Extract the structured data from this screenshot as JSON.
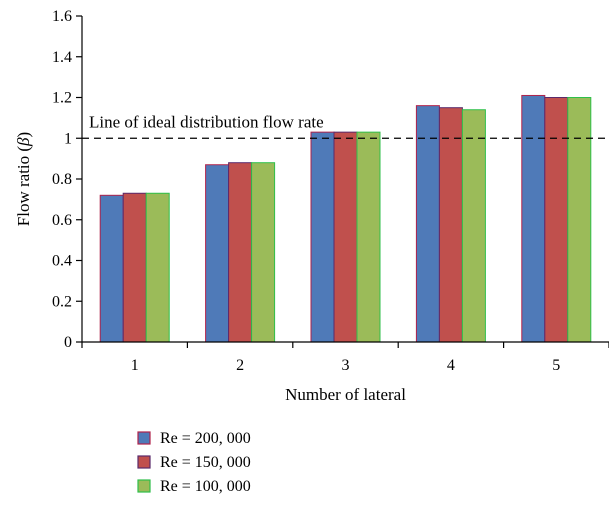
{
  "chart_data": {
    "type": "bar",
    "title": "",
    "xlabel": "Number of lateral",
    "ylabel": "Flow ratio (β)",
    "categories": [
      "1",
      "2",
      "3",
      "4",
      "5"
    ],
    "ylim": [
      0,
      1.6
    ],
    "yticks": [
      "0",
      "0.2",
      "0.4",
      "0.6",
      "0.8",
      "1",
      "1.2",
      "1.4",
      "1.6"
    ],
    "grid": false,
    "legend_position": "bottom-left",
    "series": [
      {
        "name": "Re = 200, 000",
        "color": "#4f7ab8",
        "edge": "#b0224a",
        "values": [
          0.72,
          0.87,
          1.03,
          1.16,
          1.21
        ]
      },
      {
        "name": "Re = 150, 000",
        "color": "#c0504d",
        "edge": "#5a2a6b",
        "values": [
          0.73,
          0.88,
          1.03,
          1.15,
          1.2
        ]
      },
      {
        "name": "Re = 100, 000",
        "color": "#9bbb59",
        "edge": "#2fbf4a",
        "values": [
          0.73,
          0.88,
          1.03,
          1.14,
          1.2
        ]
      }
    ],
    "reference_line": {
      "y": 1.0,
      "style": "dashed",
      "label": "Line of ideal distribution flow rate"
    }
  }
}
